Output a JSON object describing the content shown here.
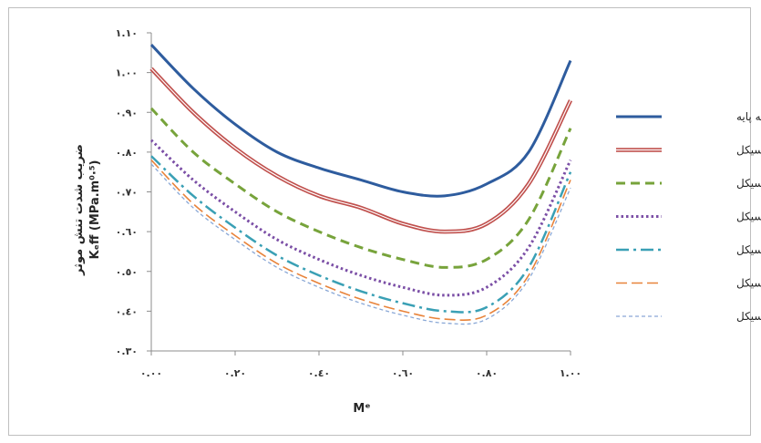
{
  "chart_data": {
    "type": "line",
    "xlabel": "Mᵉ",
    "ylabel": "ضریب شدت تنش موثر",
    "ylabel_unit": "Kₑff (MPa.m⁰·⁵)",
    "xlim": [
      0,
      1
    ],
    "ylim": [
      0.3,
      1.1
    ],
    "x_ticks": [
      0,
      0.2,
      0.4,
      0.6,
      0.8,
      1.0
    ],
    "x_tick_labels": [
      "٠.٠٠",
      "٠.٢٠",
      "٠.٤٠",
      "٠.٦٠",
      "٠.٨٠",
      "١.٠٠"
    ],
    "y_ticks": [
      0.3,
      0.4,
      0.5,
      0.6,
      0.7,
      0.8,
      0.9,
      1.0,
      1.1
    ],
    "y_tick_labels": [
      "٠.٣٠",
      "٠.٤٠",
      "٠.٥٠",
      "٠.٦٠",
      "٠.٧٠",
      "٠.٨٠",
      "٠.٩٠",
      "١.٠٠",
      "١.١٠"
    ],
    "grid": false,
    "legend_position": "right",
    "x": [
      0,
      0.1,
      0.2,
      0.3,
      0.4,
      0.5,
      0.6,
      0.7,
      0.8,
      0.9,
      1.0
    ],
    "series": [
      {
        "name": "نمونه پایه",
        "color": "#2e5c9e",
        "style": "solid-thick",
        "values": [
          1.07,
          0.96,
          0.87,
          0.8,
          0.76,
          0.73,
          0.7,
          0.69,
          0.72,
          0.8,
          1.03
        ]
      },
      {
        "name": "یک سیکل",
        "color": "#c0504d",
        "style": "double",
        "values": [
          1.01,
          0.9,
          0.81,
          0.74,
          0.69,
          0.66,
          0.62,
          0.6,
          0.62,
          0.72,
          0.93
        ]
      },
      {
        "name": "سه سیکل",
        "color": "#77a33b",
        "style": "dash",
        "values": [
          0.91,
          0.8,
          0.72,
          0.65,
          0.6,
          0.56,
          0.53,
          0.51,
          0.53,
          0.63,
          0.86
        ]
      },
      {
        "name": "پنج سیکل",
        "color": "#7b4fa6",
        "style": "dot",
        "values": [
          0.83,
          0.73,
          0.65,
          0.58,
          0.53,
          0.49,
          0.46,
          0.44,
          0.46,
          0.56,
          0.78
        ]
      },
      {
        "name": "هفت سیکل",
        "color": "#3aa0b5",
        "style": "dashdot",
        "values": [
          0.79,
          0.69,
          0.61,
          0.54,
          0.49,
          0.45,
          0.42,
          0.4,
          0.41,
          0.51,
          0.75
        ]
      },
      {
        "name": "نه سیکل",
        "color": "#e8833a",
        "style": "longdash",
        "values": [
          0.78,
          0.67,
          0.59,
          0.52,
          0.47,
          0.43,
          0.4,
          0.38,
          0.39,
          0.49,
          0.73
        ]
      },
      {
        "name": "یازده سیکل",
        "color": "#8aa8d6",
        "style": "shortdash",
        "values": [
          0.77,
          0.66,
          0.58,
          0.51,
          0.46,
          0.42,
          0.39,
          0.37,
          0.38,
          0.48,
          0.71
        ]
      }
    ]
  }
}
